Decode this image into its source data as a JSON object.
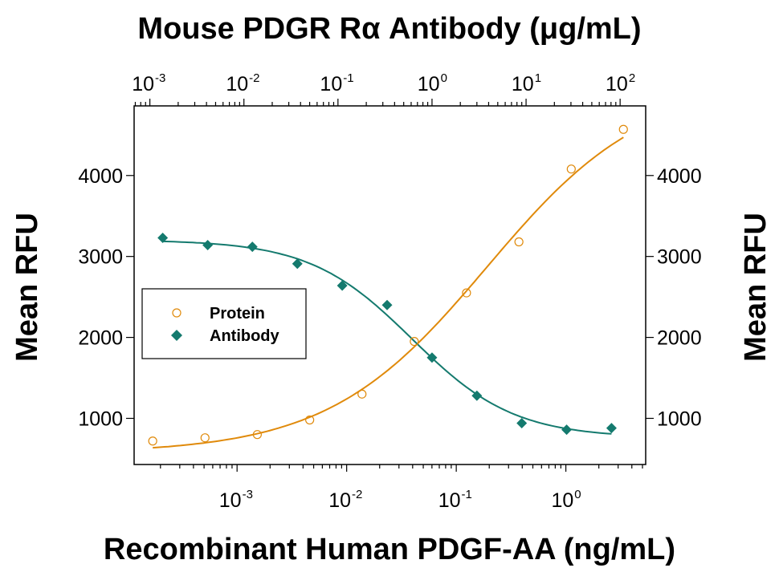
{
  "chart_data": {
    "type": "scatter",
    "title_top": "Mouse PDGR Rα Antibody (μg/mL)",
    "xlabel_bottom": "Recombinant Human PDGF-AA (ng/mL)",
    "ylabel_left": "Mean RFU",
    "ylabel_right": "Mean RFU",
    "x_bottom_scale": "log",
    "x_top_scale": "log",
    "x_bottom_ticks": [
      {
        "base": "10",
        "exp": "-3"
      },
      {
        "base": "10",
        "exp": "-2"
      },
      {
        "base": "10",
        "exp": "-1"
      },
      {
        "base": "10",
        "exp": "0"
      }
    ],
    "x_top_ticks": [
      {
        "base": "10",
        "exp": "-3"
      },
      {
        "base": "10",
        "exp": "-2"
      },
      {
        "base": "10",
        "exp": "-1"
      },
      {
        "base": "10",
        "exp": "0"
      },
      {
        "base": "10",
        "exp": "1"
      },
      {
        "base": "10",
        "exp": "2"
      }
    ],
    "y_ticks": [
      "1000",
      "2000",
      "3000",
      "4000"
    ],
    "ylim": [
      430,
      4860
    ],
    "xlim_bottom": [
      0.000115,
      5.35
    ],
    "xlim_top": [
      0.00068,
      187
    ],
    "legend_position": "center-left",
    "series": [
      {
        "name": "Protein",
        "axis": "bottom",
        "marker": "open-circle",
        "color": "#E08A0B",
        "x": [
          0.00017,
          0.00051,
          0.00153,
          0.0046,
          0.0138,
          0.0414,
          0.124,
          0.373,
          1.12,
          3.35
        ],
        "y": [
          720,
          760,
          800,
          980,
          1300,
          1950,
          2550,
          3180,
          4080,
          4570
        ]
      },
      {
        "name": "Antibody",
        "axis": "top",
        "marker": "filled-diamond",
        "color": "#147A6E",
        "x": [
          0.00137,
          0.00412,
          0.0123,
          0.037,
          0.111,
          0.333,
          1.0,
          3.0,
          9.0,
          27.0,
          81.0
        ],
        "y": [
          3230,
          3140,
          3120,
          2910,
          2640,
          2400,
          1750,
          1280,
          940,
          860,
          880
        ]
      }
    ]
  }
}
